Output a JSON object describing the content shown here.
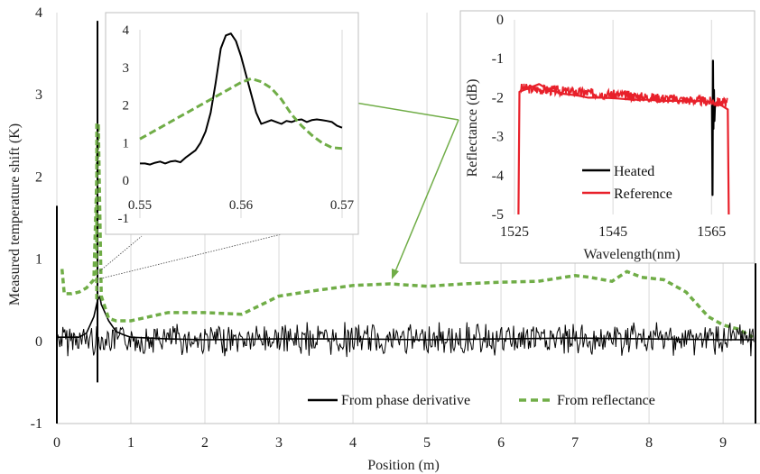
{
  "chart_data": [
    {
      "id": "main",
      "type": "line",
      "xlabel": "Position (m)",
      "ylabel": "Measured temperature shift (K)",
      "xlim": [
        0,
        9.45
      ],
      "ylim": [
        -1,
        4
      ],
      "xticks": [
        "0",
        "1",
        "2",
        "3",
        "4",
        "5",
        "6",
        "7",
        "8",
        "9"
      ],
      "yticks": [
        "-1",
        "0",
        "1",
        "2",
        "3",
        "4"
      ],
      "grid": "vertical",
      "legend_position": "bottom-right",
      "series": [
        {
          "name": "From phase derivative",
          "color": "#000000",
          "style": "solid",
          "x": [
            0,
            0.1,
            0.2,
            0.3,
            0.4,
            0.45,
            0.5,
            0.55,
            0.58,
            0.6,
            0.65,
            0.7,
            0.8,
            0.9,
            1.0,
            1.5,
            2,
            3,
            4,
            5,
            6,
            7,
            8,
            9,
            9.42
          ],
          "y": [
            0.05,
            0.05,
            0.05,
            0.05,
            0.1,
            0.2,
            0.3,
            0.5,
            0.55,
            0.45,
            0.35,
            0.25,
            0.12,
            0.08,
            0.05,
            0.03,
            0.02,
            0.03,
            0.03,
            0.02,
            0.03,
            0.04,
            0.03,
            0.02,
            0.02
          ]
        },
        {
          "name": "From reflectance",
          "color": "#70ad47",
          "style": "dashed",
          "x": [
            0.07,
            0.1,
            0.2,
            0.3,
            0.4,
            0.5,
            0.56,
            0.6,
            0.7,
            0.8,
            1.0,
            1.5,
            2.0,
            2.5,
            3.0,
            3.5,
            4.0,
            4.5,
            5.0,
            5.5,
            6.0,
            6.5,
            7.0,
            7.2,
            7.5,
            7.7,
            7.9,
            8.2,
            8.5,
            8.8,
            9.0,
            9.2,
            9.4
          ],
          "y": [
            0.88,
            0.58,
            0.58,
            0.6,
            0.65,
            0.75,
            2.65,
            0.55,
            0.28,
            0.25,
            0.25,
            0.35,
            0.35,
            0.33,
            0.55,
            0.62,
            0.68,
            0.7,
            0.67,
            0.7,
            0.72,
            0.73,
            0.8,
            0.78,
            0.73,
            0.85,
            0.78,
            0.75,
            0.6,
            0.3,
            0.2,
            0.15,
            0.05
          ]
        }
      ]
    },
    {
      "id": "inset-zoom",
      "type": "line",
      "xlim": [
        0.55,
        0.57
      ],
      "ylim": [
        -1,
        4
      ],
      "xticks": [
        "0.55",
        "0.56",
        "0.57"
      ],
      "yticks": [
        "-1",
        "0",
        "1",
        "2",
        "3",
        "4"
      ],
      "series": [
        {
          "color": "#000000",
          "style": "solid",
          "x": [
            0.55,
            0.5505,
            0.551,
            0.5515,
            0.552,
            0.5525,
            0.553,
            0.5535,
            0.554,
            0.5545,
            0.555,
            0.5555,
            0.556,
            0.5565,
            0.557,
            0.5575,
            0.558,
            0.5585,
            0.559,
            0.5595,
            0.56,
            0.5605,
            0.561,
            0.5615,
            0.562,
            0.5625,
            0.563,
            0.5635,
            0.564,
            0.5645,
            0.565,
            0.5655,
            0.566,
            0.5665,
            0.567,
            0.5675,
            0.568,
            0.5685,
            0.569,
            0.5695,
            0.57
          ],
          "y": [
            0.45,
            0.45,
            0.42,
            0.47,
            0.5,
            0.45,
            0.5,
            0.52,
            0.48,
            0.6,
            0.7,
            0.8,
            1.0,
            1.3,
            1.8,
            2.6,
            3.5,
            3.85,
            3.9,
            3.7,
            3.3,
            2.8,
            2.3,
            1.8,
            1.5,
            1.55,
            1.6,
            1.55,
            1.5,
            1.58,
            1.55,
            1.6,
            1.62,
            1.55,
            1.6,
            1.62,
            1.6,
            1.58,
            1.55,
            1.45,
            1.4
          ]
        },
        {
          "color": "#70ad47",
          "style": "dashed",
          "x": [
            0.55,
            0.552,
            0.554,
            0.556,
            0.558,
            0.559,
            0.56,
            0.561,
            0.562,
            0.563,
            0.564,
            0.565,
            0.566,
            0.567,
            0.568,
            0.569,
            0.57
          ],
          "y": [
            1.1,
            1.4,
            1.7,
            2.0,
            2.3,
            2.45,
            2.6,
            2.7,
            2.62,
            2.45,
            2.15,
            1.75,
            1.45,
            1.2,
            1.0,
            0.87,
            0.85
          ]
        }
      ]
    },
    {
      "id": "inset-spectrum",
      "type": "line",
      "xlabel": "Wavelength(nm)",
      "ylabel": "Reflectance (dB)",
      "xlim": [
        1525,
        1571
      ],
      "ylim": [
        -5,
        0
      ],
      "xticks": [
        "1525",
        "1545",
        "1565"
      ],
      "yticks": [
        "0",
        "-1",
        "-2",
        "-3",
        "-4",
        "-5"
      ],
      "legend_position": "bottom-left",
      "series": [
        {
          "name": "Heated",
          "color": "#000000",
          "style": "solid",
          "x": [
            1565.1,
            1565.2,
            1565.3,
            1565.4,
            1565.5,
            1565.6,
            1565.7
          ],
          "y": [
            -2.1,
            -4.5,
            -1.05,
            -2.8,
            -1.8,
            -2.6,
            -2.2
          ]
        },
        {
          "name": "Reference",
          "color": "#e8202a",
          "style": "solid",
          "x": [
            1525.8,
            1526.0,
            1528,
            1530,
            1532,
            1535,
            1538,
            1540,
            1543,
            1546,
            1549,
            1552,
            1555,
            1558,
            1561,
            1563,
            1565,
            1567,
            1568.3,
            1568.5
          ],
          "y": [
            -5.0,
            -1.85,
            -1.75,
            -1.65,
            -1.8,
            -1.9,
            -1.95,
            -2.0,
            -2.0,
            -2.02,
            -2.05,
            -2.05,
            -2.08,
            -2.08,
            -2.1,
            -2.08,
            -2.12,
            -2.2,
            -2.3,
            -5.0
          ]
        }
      ]
    }
  ]
}
